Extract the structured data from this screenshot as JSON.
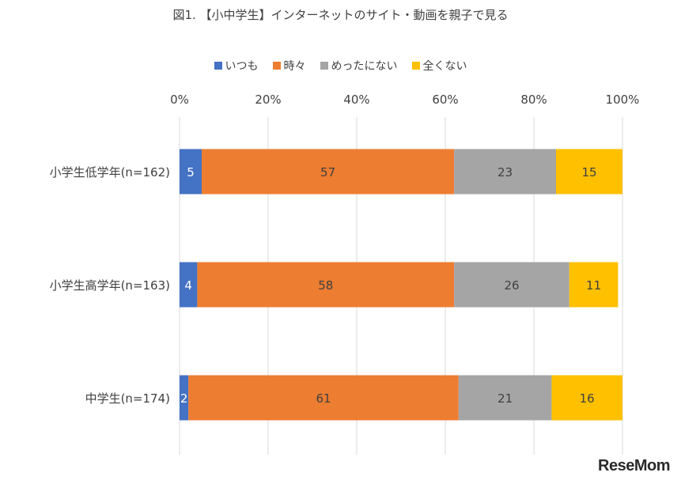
{
  "chart_data": {
    "type": "bar",
    "orientation": "horizontal",
    "stacked": true,
    "percent_stacked": true,
    "title": "図1. 【小中学生】インターネットのサイト・動画を親子で見る",
    "categories": [
      "小学生低学年(n=162)",
      "小学生高学年(n=163)",
      "中学生(n=174)"
    ],
    "series": [
      {
        "name": "いつも",
        "color": "#4472c4",
        "values": [
          5,
          4,
          2
        ]
      },
      {
        "name": "時々",
        "color": "#ed7d31",
        "values": [
          57,
          58,
          61
        ]
      },
      {
        "name": "めったにない",
        "color": "#a5a5a5",
        "values": [
          23,
          26,
          21
        ]
      },
      {
        "name": "全くない",
        "color": "#ffc000",
        "values": [
          15,
          11,
          16
        ]
      }
    ],
    "x_ticks": [
      "0%",
      "20%",
      "40%",
      "60%",
      "80%",
      "100%"
    ],
    "xlim": [
      0,
      100
    ],
    "grid": true,
    "legend_position": "top"
  },
  "watermark": {
    "text_main": "ReseMom"
  }
}
